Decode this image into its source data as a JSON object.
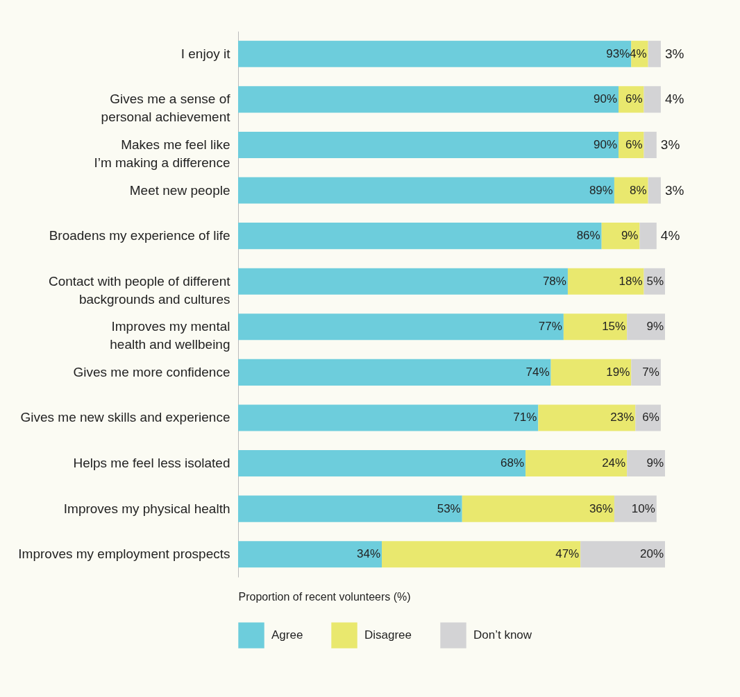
{
  "chart_data": {
    "type": "bar",
    "orientation": "horizontal",
    "stacked": true,
    "xlabel": "Proportion of recent volunteers (%)",
    "legend": "bottom left",
    "tick_labels": "y",
    "grid": false,
    "categories": [
      "I enjoy it",
      "Gives me a sense of\npersonal achievement",
      "Makes me feel like\nI’m making a difference",
      "Meet new people",
      "Broadens my experience of life",
      "Contact with people of different\nbackgrounds and cultures",
      "Improves my mental\nhealth and wellbeing",
      "Gives me more confidence",
      "Gives me new skills and experience",
      "Helps me feel less isolated",
      "Improves my physical health",
      "Improves my employment prospects"
    ],
    "series": [
      {
        "name": "Agree",
        "color": "#6dcddc",
        "values": [
          93,
          90,
          90,
          89,
          86,
          78,
          77,
          74,
          71,
          68,
          53,
          34
        ],
        "value_labels": [
          "93%",
          "90%",
          "90%",
          "89%",
          "86%",
          "78%",
          "77%",
          "74%",
          "71%",
          "68%",
          "53%",
          "34%"
        ]
      },
      {
        "name": "Disagree",
        "color": "#e9e86e",
        "values": [
          4,
          6,
          6,
          8,
          9,
          18,
          15,
          19,
          23,
          24,
          36,
          47
        ],
        "value_labels": [
          "4%",
          "6%",
          "6%",
          "8%",
          "9%",
          "18%",
          "15%",
          "19%",
          "23%",
          "24%",
          "36%",
          "47%"
        ]
      },
      {
        "name": "Don’t know",
        "color": "#d3d3d5",
        "values": [
          3,
          4,
          3,
          3,
          4,
          5,
          9,
          7,
          6,
          9,
          10,
          20
        ],
        "value_labels": [
          "3%",
          "4%",
          "3%",
          "3%",
          "4%",
          "5%",
          "9%",
          "7%",
          "6%",
          "9%",
          "10%",
          "20%"
        ]
      }
    ]
  }
}
